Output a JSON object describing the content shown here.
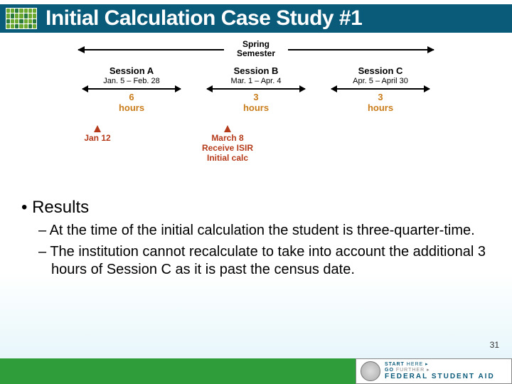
{
  "header": {
    "title": "Initial Calculation Case Study #1"
  },
  "semester": {
    "label": "Spring\nSemester"
  },
  "sessions": [
    {
      "title": "Session A",
      "dates": "Jan. 5 – Feb. 28",
      "hours_num": "6",
      "hours_word": "hours",
      "hours_color": "#c97c1a"
    },
    {
      "title": "Session B",
      "dates": "Mar. 1 – Apr. 4",
      "hours_num": "3",
      "hours_word": "hours",
      "hours_color": "#c97c1a"
    },
    {
      "title": "Session C",
      "dates": "Apr. 5 – April 30",
      "hours_num": "3",
      "hours_word": "hours",
      "hours_color": "#c97c1a"
    }
  ],
  "markers": {
    "jan": {
      "label": "Jan 12",
      "color": "#b53a1a"
    },
    "mar": {
      "line1": "March 8",
      "line2": "Receive ISIR",
      "line3": "Initial calc",
      "color": "#b53a1a"
    }
  },
  "results": {
    "heading": "Results",
    "items": [
      "At the time of the initial calculation the student is three-quarter-time.",
      "The institution cannot recalculate to take into account the additional 3 hours of Session C as it is past the census date."
    ]
  },
  "page_number": "31",
  "footer": {
    "tag1": "START",
    "tag1b": "HERE",
    "tag2": "GO",
    "tag2b": "FURTHER",
    "main": "FEDERAL STUDENT AID"
  },
  "colors": {
    "header_bg": "#0a5a7a",
    "footer_green": "#2f9e3a"
  }
}
